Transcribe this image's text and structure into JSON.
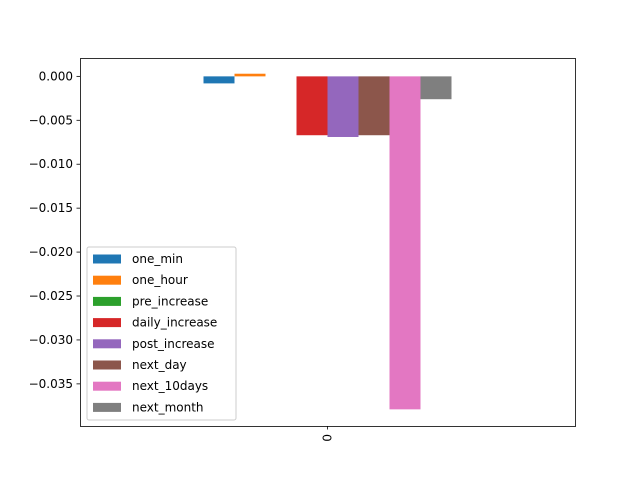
{
  "chart_data": {
    "type": "bar",
    "categories": [
      "0"
    ],
    "series": [
      {
        "name": "one_min",
        "values": [
          -0.0008
        ],
        "color": "#1f77b4"
      },
      {
        "name": "one_hour",
        "values": [
          0.0003
        ],
        "color": "#ff7f0e"
      },
      {
        "name": "pre_increase",
        "values": [
          0.0
        ],
        "color": "#2ca02c"
      },
      {
        "name": "daily_increase",
        "values": [
          -0.0067
        ],
        "color": "#d62728"
      },
      {
        "name": "post_increase",
        "values": [
          -0.0069
        ],
        "color": "#9467bd"
      },
      {
        "name": "next_day",
        "values": [
          -0.0067
        ],
        "color": "#8c564b"
      },
      {
        "name": "next_10days",
        "values": [
          -0.0379
        ],
        "color": "#e377c2"
      },
      {
        "name": "next_month",
        "values": [
          -0.0026
        ],
        "color": "#7f7f7f"
      }
    ],
    "yticks": [
      0.0,
      -0.005,
      -0.01,
      -0.015,
      -0.02,
      -0.025,
      -0.03,
      -0.035
    ],
    "ytick_labels": [
      "0.000",
      "−0.005",
      "−0.010",
      "−0.015",
      "−0.020",
      "−0.025",
      "−0.030",
      "−0.035"
    ],
    "ylim": [
      -0.039795,
      0.00209
    ],
    "xtick_labels": [
      "0"
    ],
    "title": "",
    "xlabel": "",
    "ylabel": "",
    "legend_position": "lower-left",
    "grid": false
  }
}
